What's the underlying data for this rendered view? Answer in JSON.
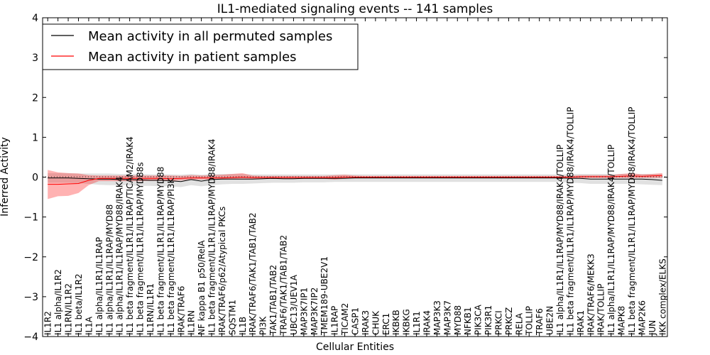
{
  "chart_data": {
    "type": "line",
    "title": "IL1-mediated signaling events -- 141 samples",
    "xlabel": "Cellular Entities",
    "ylabel": "Inferred Activity",
    "ylim": [
      -4,
      4
    ],
    "yticks": [
      -4,
      -3,
      -2,
      -1,
      0,
      1,
      2,
      3,
      4
    ],
    "ytick_labels": [
      "−4",
      "−3",
      "−2",
      "−1",
      "0",
      "1",
      "2",
      "3",
      "4"
    ],
    "legend": {
      "placement": "top-left",
      "entries": [
        {
          "label": "Mean activity in all permuted samples",
          "color": "#000000"
        },
        {
          "label": "Mean activity in patient samples",
          "color": "#ff0000"
        }
      ]
    },
    "categories": [
      "IL1R2",
      "IL1 alpha/IL1R2",
      "IL1RN/IL1R2",
      "IL1 beta/IL1R2",
      "IL1A",
      "IL1 alpha/IL1R1/IL1RAP",
      "IL1 alpha/IL1R1/IL1RAP/MYD88",
      "IL1 alpha/IL1R1/IL1RAP/MYD88/IRAK4",
      "IL1 beta fragment/IL1R1/IL1RAP/TICAM2/IRAK4",
      "IL1 beta fragment/IL1R1/IL1RAP/MYD88s",
      "IL1RN/IL1R1",
      "IL1 beta fragment/IL1R1/IL1RAP/MYD88",
      "IL1 beta fragment/IL1R1/IL1RAP/PI3K",
      "IRAK/TRAF6",
      "IL1RN",
      "NF kappa B1 p50/RelA",
      "IL1 beta fragment/IL1R1/IL1RAP/MYD88/IRAK4",
      "IRAK/TRAF6/p62/Atypical PKCs",
      "SQSTM1",
      "IL1B",
      "IRAK/TRAF6/TAK1/TAB1/TAB2",
      "PI3K",
      "TAK1/TAB1/TAB2",
      "TRAF6/TAK1/TAB1/TAB2",
      "UBC13/UEV1A",
      "MAP3K7IP1",
      "MAP3K7IP2",
      "TMEM189-UBE2V1",
      "IL1RAP",
      "TICAM2",
      "CASP1",
      "IRAK3",
      "CHUK",
      "ERC1",
      "IKBKB",
      "IKBKG",
      "IL1R1",
      "IRAK4",
      "MAP3K3",
      "MAP3K7",
      "MYD88",
      "NFKB1",
      "PIK3CA",
      "PIK3R1",
      "PRKCI",
      "PRKCZ",
      "RELA",
      "TOLLIP",
      "TRAF6",
      "UBE2N",
      "IL1 alpha/IL1R1/IL1RAP/MYD88/IRAK4/TOLLIP",
      "IL1 beta fragment/IL1R1/IL1RAP/MYD88/IRAK4/TOLLIP",
      "IRAK1",
      "IRAK/TRAF6/MEKK3",
      "IRAK/TOLLIP",
      "IL1 alpha/IL1R1/IL1RAP/MYD88/IRAK4/TOLLIP",
      "MAPK8",
      "IL1 beta fragment/IL1R1/IL1RAP/MYD88/IRAK4/TOLLIP",
      "MAP2K6",
      "JUN",
      "IKK complex/ELKS"
    ],
    "series": [
      {
        "name": "Mean activity in all permuted samples",
        "color": "#000000",
        "values": [
          -0.02,
          -0.02,
          -0.02,
          -0.03,
          -0.04,
          -0.05,
          -0.05,
          -0.06,
          -0.06,
          -0.07,
          -0.08,
          -0.08,
          -0.09,
          -0.11,
          -0.06,
          -0.1,
          -0.06,
          -0.05,
          -0.05,
          -0.05,
          -0.05,
          -0.04,
          -0.03,
          -0.04,
          -0.04,
          -0.03,
          -0.03,
          -0.03,
          -0.03,
          -0.03,
          -0.02,
          -0.02,
          -0.02,
          -0.02,
          -0.02,
          -0.02,
          -0.02,
          -0.02,
          -0.02,
          -0.02,
          -0.02,
          -0.02,
          -0.02,
          -0.02,
          -0.02,
          -0.02,
          -0.02,
          -0.02,
          -0.02,
          -0.02,
          -0.02,
          -0.03,
          -0.03,
          -0.05,
          -0.05,
          -0.05,
          -0.05,
          -0.05,
          -0.05,
          -0.06,
          -0.08
        ],
        "band_low": [
          -0.14,
          -0.14,
          -0.14,
          -0.15,
          -0.17,
          -0.19,
          -0.2,
          -0.2,
          -0.21,
          -0.22,
          -0.22,
          -0.23,
          -0.23,
          -0.25,
          -0.2,
          -0.23,
          -0.2,
          -0.18,
          -0.17,
          -0.17,
          -0.16,
          -0.15,
          -0.14,
          -0.14,
          -0.14,
          -0.13,
          -0.13,
          -0.13,
          -0.12,
          -0.12,
          -0.12,
          -0.12,
          -0.12,
          -0.12,
          -0.12,
          -0.12,
          -0.12,
          -0.12,
          -0.12,
          -0.12,
          -0.12,
          -0.12,
          -0.12,
          -0.12,
          -0.12,
          -0.12,
          -0.12,
          -0.12,
          -0.12,
          -0.12,
          -0.12,
          -0.14,
          -0.15,
          -0.17,
          -0.17,
          -0.17,
          -0.17,
          -0.17,
          -0.18,
          -0.19,
          -0.2
        ],
        "band_high": [
          0.1,
          0.1,
          0.1,
          0.09,
          0.09,
          0.09,
          0.09,
          0.08,
          0.08,
          0.08,
          0.07,
          0.07,
          0.07,
          0.06,
          0.08,
          0.06,
          0.08,
          0.08,
          0.08,
          0.08,
          0.07,
          0.07,
          0.07,
          0.07,
          0.07,
          0.07,
          0.07,
          0.07,
          0.07,
          0.07,
          0.07,
          0.07,
          0.07,
          0.07,
          0.07,
          0.07,
          0.07,
          0.07,
          0.07,
          0.07,
          0.07,
          0.07,
          0.07,
          0.07,
          0.07,
          0.07,
          0.07,
          0.07,
          0.07,
          0.07,
          0.07,
          0.08,
          0.08,
          0.08,
          0.08,
          0.08,
          0.08,
          0.08,
          0.08,
          0.08,
          0.08
        ]
      },
      {
        "name": "Mean activity in patient samples",
        "color": "#ff0000",
        "values": [
          -0.18,
          -0.18,
          -0.17,
          -0.16,
          -0.08,
          -0.03,
          -0.03,
          -0.03,
          -0.03,
          -0.03,
          -0.03,
          -0.03,
          -0.04,
          -0.03,
          -0.02,
          -0.02,
          -0.02,
          -0.02,
          -0.01,
          0.0,
          -0.01,
          -0.01,
          -0.01,
          -0.01,
          -0.01,
          -0.01,
          -0.01,
          -0.01,
          -0.01,
          0.0,
          0.0,
          0.0,
          0.0,
          0.0,
          0.0,
          0.0,
          0.0,
          0.0,
          0.0,
          0.0,
          0.0,
          0.0,
          0.0,
          0.0,
          0.0,
          0.0,
          0.0,
          0.0,
          0.0,
          0.0,
          0.0,
          0.0,
          0.01,
          0.01,
          0.01,
          0.01,
          0.02,
          0.03,
          0.02,
          0.03,
          0.04
        ],
        "band_low": [
          -0.55,
          -0.48,
          -0.47,
          -0.4,
          -0.2,
          -0.1,
          -0.1,
          -0.1,
          -0.1,
          -0.1,
          -0.09,
          -0.09,
          -0.09,
          -0.08,
          -0.06,
          -0.06,
          -0.06,
          -0.06,
          -0.05,
          -0.04,
          -0.04,
          -0.04,
          -0.04,
          -0.04,
          -0.04,
          -0.04,
          -0.04,
          -0.04,
          -0.06,
          -0.04,
          -0.03,
          -0.03,
          -0.03,
          -0.03,
          -0.03,
          -0.03,
          -0.03,
          -0.03,
          -0.03,
          -0.03,
          -0.03,
          -0.03,
          -0.03,
          -0.03,
          -0.03,
          -0.03,
          -0.03,
          -0.03,
          -0.03,
          -0.03,
          -0.03,
          -0.03,
          -0.03,
          -0.02,
          -0.02,
          -0.02,
          -0.02,
          -0.02,
          -0.02,
          -0.02,
          -0.02
        ],
        "band_high": [
          0.18,
          0.12,
          0.1,
          0.09,
          0.05,
          0.04,
          0.04,
          0.04,
          0.04,
          0.04,
          0.04,
          0.04,
          0.04,
          0.03,
          0.05,
          0.04,
          0.05,
          0.06,
          0.08,
          0.1,
          0.04,
          0.03,
          0.03,
          0.03,
          0.03,
          0.03,
          0.03,
          0.03,
          0.05,
          0.06,
          0.04,
          0.03,
          0.03,
          0.03,
          0.03,
          0.03,
          0.03,
          0.03,
          0.03,
          0.03,
          0.03,
          0.03,
          0.03,
          0.03,
          0.03,
          0.03,
          0.03,
          0.03,
          0.03,
          0.03,
          0.03,
          0.03,
          0.05,
          0.05,
          0.05,
          0.05,
          0.08,
          0.1,
          0.07,
          0.08,
          0.1
        ]
      }
    ]
  }
}
